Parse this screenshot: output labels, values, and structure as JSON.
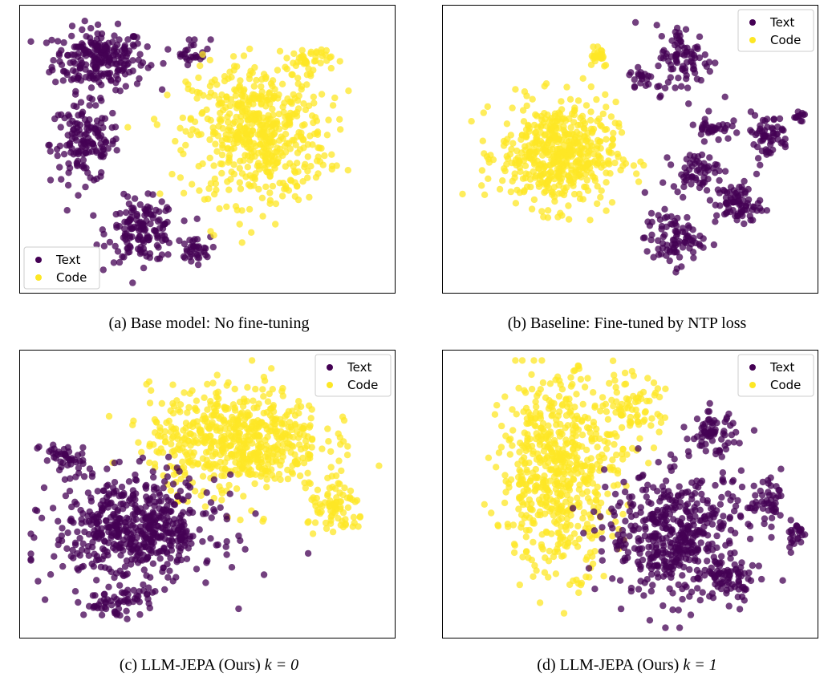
{
  "colors": {
    "text": "#440154",
    "code": "#fde725",
    "frame": "#000000"
  },
  "chart_data": [
    {
      "type": "scatter",
      "title": "",
      "caption": "(a) Base model: No fine-tuning",
      "legend": {
        "location": "lower-left",
        "entries": [
          "Text",
          "Code"
        ]
      },
      "xlim": [
        0,
        100
      ],
      "ylim": [
        0,
        100
      ],
      "grid": false,
      "ticks": false,
      "clusters": [
        {
          "series": "Text",
          "x": 20,
          "y": 83,
          "sx": 8,
          "sy": 7,
          "n": 230
        },
        {
          "series": "Text",
          "x": 46,
          "y": 86,
          "sx": 3,
          "sy": 3,
          "n": 25
        },
        {
          "series": "Text",
          "x": 16,
          "y": 52,
          "sx": 6,
          "sy": 9,
          "n": 150
        },
        {
          "series": "Text",
          "x": 32,
          "y": 20,
          "sx": 6,
          "sy": 7,
          "n": 150
        },
        {
          "series": "Text",
          "x": 46,
          "y": 13,
          "sx": 3,
          "sy": 3,
          "n": 35
        },
        {
          "series": "Code",
          "x": 64,
          "y": 56,
          "sx": 12,
          "sy": 16,
          "n": 560
        },
        {
          "series": "Code",
          "x": 78,
          "y": 83,
          "sx": 4,
          "sy": 3,
          "n": 40
        }
      ]
    },
    {
      "type": "scatter",
      "title": "",
      "caption": "(b) Baseline: Fine-tuned by NTP loss",
      "legend": {
        "location": "upper-right",
        "entries": [
          "Text",
          "Code"
        ]
      },
      "xlim": [
        0,
        100
      ],
      "ylim": [
        0,
        100
      ],
      "grid": false,
      "ticks": false,
      "clusters": [
        {
          "series": "Code",
          "x": 30,
          "y": 48,
          "sx": 10,
          "sy": 12,
          "n": 520
        },
        {
          "series": "Code",
          "x": 41,
          "y": 85,
          "sx": 2,
          "sy": 3,
          "n": 25
        },
        {
          "series": "Text",
          "x": 53,
          "y": 76,
          "sx": 2,
          "sy": 3,
          "n": 20
        },
        {
          "series": "Text",
          "x": 65,
          "y": 83,
          "sx": 5,
          "sy": 8,
          "n": 90
        },
        {
          "series": "Text",
          "x": 73,
          "y": 58,
          "sx": 3,
          "sy": 3,
          "n": 35
        },
        {
          "series": "Text",
          "x": 88,
          "y": 55,
          "sx": 4,
          "sy": 5,
          "n": 60
        },
        {
          "series": "Text",
          "x": 68,
          "y": 42,
          "sx": 4,
          "sy": 4,
          "n": 60
        },
        {
          "series": "Text",
          "x": 80,
          "y": 30,
          "sx": 4,
          "sy": 5,
          "n": 80
        },
        {
          "series": "Text",
          "x": 62,
          "y": 17,
          "sx": 5,
          "sy": 6,
          "n": 90
        },
        {
          "series": "Text",
          "x": 97,
          "y": 62,
          "sx": 1,
          "sy": 2,
          "n": 12
        }
      ]
    },
    {
      "type": "scatter",
      "title": "",
      "caption": "(c) LLM-JEPA (Ours)",
      "caption_math": "k = 0",
      "legend": {
        "location": "upper-right",
        "entries": [
          "Text",
          "Code"
        ]
      },
      "xlim": [
        0,
        100
      ],
      "ylim": [
        0,
        100
      ],
      "grid": false,
      "ticks": false,
      "clusters": [
        {
          "series": "Code",
          "x": 58,
          "y": 70,
          "sx": 15,
          "sy": 12,
          "n": 620
        },
        {
          "series": "Code",
          "x": 86,
          "y": 44,
          "sx": 5,
          "sy": 6,
          "n": 80
        },
        {
          "series": "Text",
          "x": 30,
          "y": 37,
          "sx": 14,
          "sy": 12,
          "n": 560
        },
        {
          "series": "Text",
          "x": 10,
          "y": 63,
          "sx": 4,
          "sy": 4,
          "n": 45
        },
        {
          "series": "Text",
          "x": 25,
          "y": 10,
          "sx": 6,
          "sy": 3,
          "n": 60
        }
      ]
    },
    {
      "type": "scatter",
      "title": "",
      "caption": "(d) LLM-JEPA (Ours)",
      "caption_math": "k = 1",
      "legend": {
        "location": "upper-right",
        "entries": [
          "Text",
          "Code"
        ]
      },
      "xlim": [
        0,
        100
      ],
      "ylim": [
        0,
        100
      ],
      "grid": false,
      "ticks": false,
      "clusters": [
        {
          "series": "Code",
          "x": 30,
          "y": 58,
          "sx": 10,
          "sy": 22,
          "n": 600
        },
        {
          "series": "Code",
          "x": 50,
          "y": 80,
          "sx": 6,
          "sy": 9,
          "n": 80
        },
        {
          "series": "Text",
          "x": 63,
          "y": 35,
          "sx": 12,
          "sy": 14,
          "n": 480
        },
        {
          "series": "Text",
          "x": 73,
          "y": 72,
          "sx": 4,
          "sy": 5,
          "n": 70
        },
        {
          "series": "Text",
          "x": 88,
          "y": 46,
          "sx": 4,
          "sy": 5,
          "n": 50
        },
        {
          "series": "Text",
          "x": 96,
          "y": 35,
          "sx": 2,
          "sy": 4,
          "n": 25
        },
        {
          "series": "Text",
          "x": 78,
          "y": 18,
          "sx": 5,
          "sy": 5,
          "n": 60
        }
      ]
    }
  ]
}
